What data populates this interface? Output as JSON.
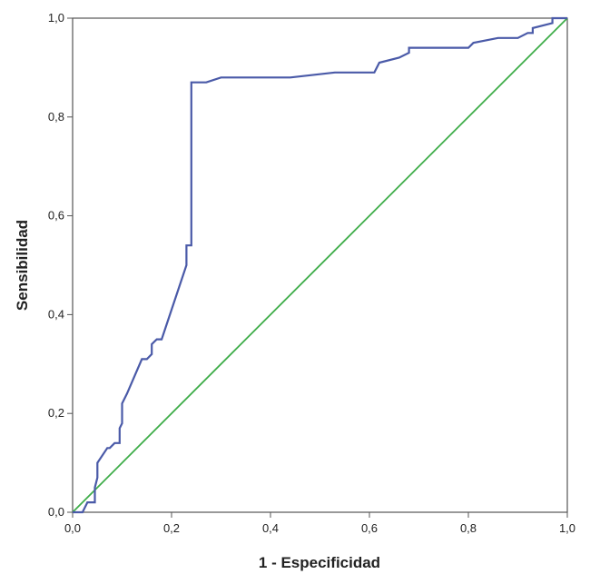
{
  "chart_data": {
    "type": "line",
    "xlabel": "1 - Especificidad",
    "ylabel": "Sensibilidad",
    "xlim": [
      0,
      1
    ],
    "ylim": [
      0,
      1
    ],
    "x_ticks": [
      "0,0",
      "0,2",
      "0,4",
      "0,6",
      "0,8",
      "1,0"
    ],
    "y_ticks": [
      "0,0",
      "0,2",
      "0,4",
      "0,6",
      "0,8",
      "1,0"
    ],
    "grid": false,
    "series": [
      {
        "color": "#4a5aa8",
        "x": [
          0.0,
          0.02,
          0.03,
          0.045,
          0.045,
          0.05,
          0.05,
          0.07,
          0.075,
          0.085,
          0.095,
          0.095,
          0.1,
          0.1,
          0.11,
          0.14,
          0.15,
          0.16,
          0.16,
          0.17,
          0.18,
          0.2,
          0.23,
          0.23,
          0.24,
          0.24,
          0.27,
          0.3,
          0.44,
          0.53,
          0.61,
          0.62,
          0.66,
          0.68,
          0.68,
          0.8,
          0.81,
          0.86,
          0.9,
          0.92,
          0.93,
          0.93,
          0.97,
          0.97,
          1.0
        ],
        "y": [
          0.0,
          0.0,
          0.02,
          0.02,
          0.05,
          0.07,
          0.1,
          0.13,
          0.13,
          0.14,
          0.14,
          0.17,
          0.18,
          0.22,
          0.24,
          0.31,
          0.31,
          0.32,
          0.34,
          0.35,
          0.35,
          0.41,
          0.5,
          0.54,
          0.54,
          0.87,
          0.87,
          0.88,
          0.88,
          0.89,
          0.89,
          0.91,
          0.92,
          0.93,
          0.94,
          0.94,
          0.95,
          0.96,
          0.96,
          0.97,
          0.97,
          0.98,
          0.99,
          1.0,
          1.0
        ]
      },
      {
        "color": "#3fad4a",
        "x": [
          0,
          1
        ],
        "y": [
          0,
          1
        ]
      }
    ]
  }
}
